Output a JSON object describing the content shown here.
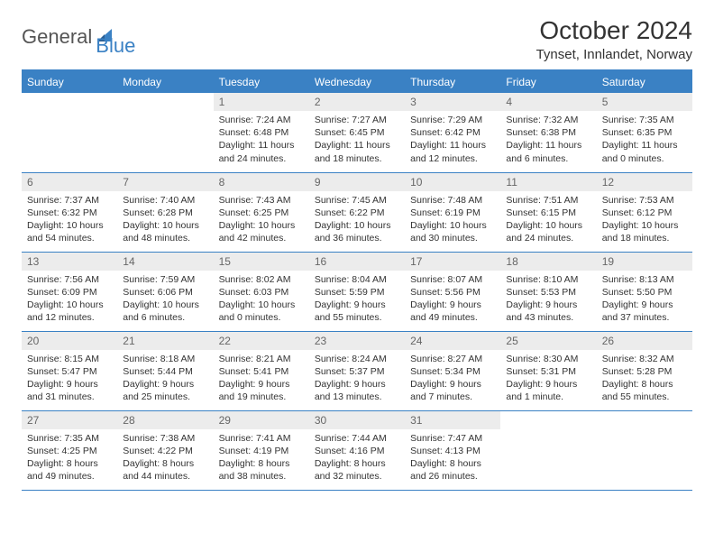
{
  "brand": {
    "part1": "General",
    "part2": "Blue"
  },
  "title": "October 2024",
  "location": "Tynset, Innlandet, Norway",
  "colors": {
    "accent": "#3a81c4",
    "headerText": "#ffffff",
    "dayNumBg": "#ececec",
    "dayNumText": "#666666",
    "bodyText": "#333333",
    "background": "#ffffff"
  },
  "daysOfWeek": [
    "Sunday",
    "Monday",
    "Tuesday",
    "Wednesday",
    "Thursday",
    "Friday",
    "Saturday"
  ],
  "firstWeekday": 2,
  "daysInMonth": 31,
  "entries": {
    "1": {
      "sunrise": "7:24 AM",
      "sunset": "6:48 PM",
      "daylight": "11 hours and 24 minutes."
    },
    "2": {
      "sunrise": "7:27 AM",
      "sunset": "6:45 PM",
      "daylight": "11 hours and 18 minutes."
    },
    "3": {
      "sunrise": "7:29 AM",
      "sunset": "6:42 PM",
      "daylight": "11 hours and 12 minutes."
    },
    "4": {
      "sunrise": "7:32 AM",
      "sunset": "6:38 PM",
      "daylight": "11 hours and 6 minutes."
    },
    "5": {
      "sunrise": "7:35 AM",
      "sunset": "6:35 PM",
      "daylight": "11 hours and 0 minutes."
    },
    "6": {
      "sunrise": "7:37 AM",
      "sunset": "6:32 PM",
      "daylight": "10 hours and 54 minutes."
    },
    "7": {
      "sunrise": "7:40 AM",
      "sunset": "6:28 PM",
      "daylight": "10 hours and 48 minutes."
    },
    "8": {
      "sunrise": "7:43 AM",
      "sunset": "6:25 PM",
      "daylight": "10 hours and 42 minutes."
    },
    "9": {
      "sunrise": "7:45 AM",
      "sunset": "6:22 PM",
      "daylight": "10 hours and 36 minutes."
    },
    "10": {
      "sunrise": "7:48 AM",
      "sunset": "6:19 PM",
      "daylight": "10 hours and 30 minutes."
    },
    "11": {
      "sunrise": "7:51 AM",
      "sunset": "6:15 PM",
      "daylight": "10 hours and 24 minutes."
    },
    "12": {
      "sunrise": "7:53 AM",
      "sunset": "6:12 PM",
      "daylight": "10 hours and 18 minutes."
    },
    "13": {
      "sunrise": "7:56 AM",
      "sunset": "6:09 PM",
      "daylight": "10 hours and 12 minutes."
    },
    "14": {
      "sunrise": "7:59 AM",
      "sunset": "6:06 PM",
      "daylight": "10 hours and 6 minutes."
    },
    "15": {
      "sunrise": "8:02 AM",
      "sunset": "6:03 PM",
      "daylight": "10 hours and 0 minutes."
    },
    "16": {
      "sunrise": "8:04 AM",
      "sunset": "5:59 PM",
      "daylight": "9 hours and 55 minutes."
    },
    "17": {
      "sunrise": "8:07 AM",
      "sunset": "5:56 PM",
      "daylight": "9 hours and 49 minutes."
    },
    "18": {
      "sunrise": "8:10 AM",
      "sunset": "5:53 PM",
      "daylight": "9 hours and 43 minutes."
    },
    "19": {
      "sunrise": "8:13 AM",
      "sunset": "5:50 PM",
      "daylight": "9 hours and 37 minutes."
    },
    "20": {
      "sunrise": "8:15 AM",
      "sunset": "5:47 PM",
      "daylight": "9 hours and 31 minutes."
    },
    "21": {
      "sunrise": "8:18 AM",
      "sunset": "5:44 PM",
      "daylight": "9 hours and 25 minutes."
    },
    "22": {
      "sunrise": "8:21 AM",
      "sunset": "5:41 PM",
      "daylight": "9 hours and 19 minutes."
    },
    "23": {
      "sunrise": "8:24 AM",
      "sunset": "5:37 PM",
      "daylight": "9 hours and 13 minutes."
    },
    "24": {
      "sunrise": "8:27 AM",
      "sunset": "5:34 PM",
      "daylight": "9 hours and 7 minutes."
    },
    "25": {
      "sunrise": "8:30 AM",
      "sunset": "5:31 PM",
      "daylight": "9 hours and 1 minute."
    },
    "26": {
      "sunrise": "8:32 AM",
      "sunset": "5:28 PM",
      "daylight": "8 hours and 55 minutes."
    },
    "27": {
      "sunrise": "7:35 AM",
      "sunset": "4:25 PM",
      "daylight": "8 hours and 49 minutes."
    },
    "28": {
      "sunrise": "7:38 AM",
      "sunset": "4:22 PM",
      "daylight": "8 hours and 44 minutes."
    },
    "29": {
      "sunrise": "7:41 AM",
      "sunset": "4:19 PM",
      "daylight": "8 hours and 38 minutes."
    },
    "30": {
      "sunrise": "7:44 AM",
      "sunset": "4:16 PM",
      "daylight": "8 hours and 32 minutes."
    },
    "31": {
      "sunrise": "7:47 AM",
      "sunset": "4:13 PM",
      "daylight": "8 hours and 26 minutes."
    }
  },
  "labels": {
    "sunrise": "Sunrise:",
    "sunset": "Sunset:",
    "daylight": "Daylight:"
  }
}
